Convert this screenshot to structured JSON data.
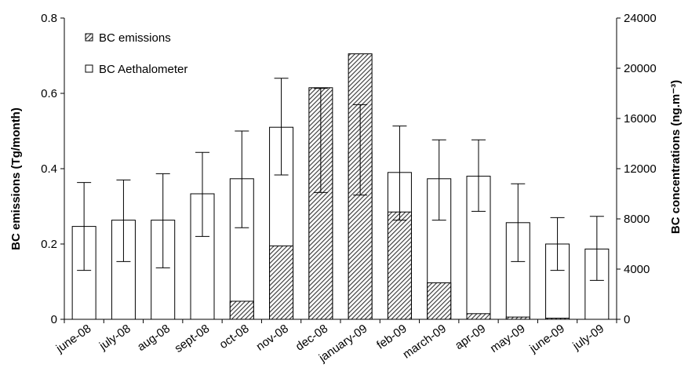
{
  "chart_data": {
    "type": "bar",
    "categories": [
      "june-08",
      "july-08",
      "aug-08",
      "sept-08",
      "oct-08",
      "nov-08",
      "dec-08",
      "january-09",
      "feb-09",
      "march-09",
      "apr-09",
      "may-09",
      "june-09",
      "july-09"
    ],
    "series": [
      {
        "name": "BC emissions",
        "axis": "left",
        "style": "hatched",
        "values": [
          0,
          0,
          0,
          0,
          0.048,
          0.195,
          0.615,
          0.705,
          0.285,
          0.097,
          0.015,
          0.006,
          0.003,
          0
        ]
      },
      {
        "name": "BC Aethalometer",
        "axis": "right",
        "style": "open",
        "values": [
          7400,
          7900,
          7900,
          10000,
          11200,
          15300,
          14200,
          13400,
          11700,
          11200,
          11400,
          7700,
          6000,
          5600
        ],
        "error_upper": [
          10900,
          11100,
          11600,
          13300,
          15000,
          19200,
          18400,
          17100,
          15400,
          14300,
          14300,
          10800,
          8100,
          8200
        ],
        "error_lower": [
          3900,
          4600,
          4100,
          6600,
          7300,
          11500,
          10100,
          9900,
          7900,
          7900,
          8600,
          4600,
          3900,
          3100
        ]
      }
    ],
    "left_axis": {
      "label": "BC emissions (Tg/month)",
      "ylim": [
        0,
        0.8
      ],
      "ticks": [
        "0",
        "0.2",
        "0.4",
        "0.6",
        "0.8"
      ]
    },
    "right_axis": {
      "label": "BC concentrations (ng.m⁻³)",
      "ylim": [
        0,
        24000
      ],
      "ticks": [
        "0",
        "4000",
        "8000",
        "12000",
        "16000",
        "20000",
        "24000"
      ]
    },
    "legend_position": "top-left",
    "colors": {
      "bar_fill": "#ffffff",
      "hatch": "#333333",
      "stroke": "#000000"
    }
  }
}
